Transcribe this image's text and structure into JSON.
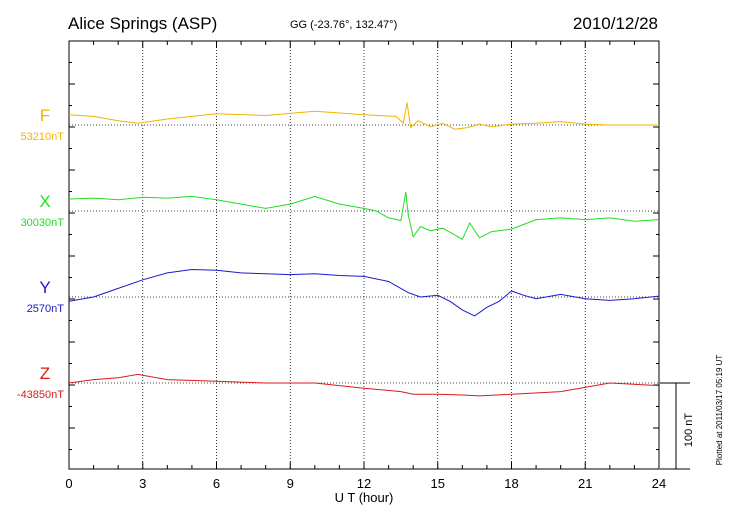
{
  "title": {
    "station": "Alice Springs (ASP)",
    "coords": "GG (-23.76°, 132.47°)",
    "date": "2010/12/28"
  },
  "plotted_note": "Plotted at 2011/03/17 05:19 UT",
  "scale_label": "100 nT",
  "colors": {
    "F": "#f0b400",
    "X": "#22dd22",
    "Y": "#1a1acc",
    "Z": "#dd1a1a",
    "axis": "#000000",
    "grid": "#000000"
  },
  "chart_data": {
    "type": "line",
    "xlabel": "U T (hour)",
    "xlim": [
      0,
      24
    ],
    "xticks": [
      "0",
      "3",
      "6",
      "9",
      "12",
      "15",
      "18",
      "21",
      "24"
    ],
    "grid": true,
    "scale_nT": 100,
    "series": [
      {
        "name": "F",
        "baseline_label": "53210nT",
        "x": [
          0,
          1,
          2,
          2.8,
          4,
          6,
          8,
          10,
          12,
          13.3,
          13.6,
          13.75,
          13.9,
          14.2,
          14.7,
          15.2,
          15.7,
          16.2,
          16.7,
          17.2,
          18,
          19,
          20,
          21,
          22,
          23,
          24
        ],
        "y": [
          12,
          10,
          5,
          2,
          7,
          13,
          11,
          16,
          12,
          10,
          2,
          26,
          -3,
          5,
          -2,
          2,
          -5,
          -3,
          1,
          -2,
          1,
          2,
          4,
          1,
          0,
          0,
          0
        ]
      },
      {
        "name": "X",
        "baseline_label": "30030nT",
        "x": [
          0,
          1,
          2,
          3,
          4,
          5,
          6,
          7,
          8,
          9,
          10,
          11,
          12,
          12.5,
          13,
          13.5,
          13.7,
          13.8,
          14,
          14.3,
          14.7,
          15.2,
          15.7,
          16,
          16.3,
          16.7,
          17.2,
          18,
          19,
          20,
          21,
          22,
          23,
          24
        ],
        "y": [
          14,
          15,
          13,
          16,
          15,
          17,
          13,
          8,
          3,
          8,
          17,
          8,
          3,
          0,
          -8,
          -11,
          22,
          -5,
          -30,
          -18,
          -23,
          -20,
          -28,
          -33,
          -14,
          -31,
          -24,
          -21,
          -10,
          -8,
          -10,
          -8,
          -12,
          -10
        ]
      },
      {
        "name": "Y",
        "baseline_label": "2570nT",
        "x": [
          0,
          1,
          2,
          3,
          4,
          5,
          6,
          7,
          8,
          9,
          10,
          11,
          12,
          13,
          13.8,
          14.3,
          15,
          15.5,
          16,
          16.5,
          17,
          17.5,
          18,
          18.5,
          19,
          20,
          21,
          22,
          23,
          24
        ],
        "y": [
          -5,
          0,
          10,
          20,
          28,
          32,
          31,
          28,
          27,
          26,
          27,
          25,
          24,
          18,
          5,
          0,
          2,
          -5,
          -15,
          -22,
          -12,
          -5,
          7,
          2,
          -2,
          3,
          -2,
          -4,
          -2,
          1
        ]
      },
      {
        "name": "Z",
        "baseline_label": "-43850nT",
        "x": [
          0,
          1,
          2,
          2.8,
          4,
          6,
          8,
          10,
          12,
          13.5,
          14,
          15,
          16,
          16.7,
          18,
          20,
          22,
          24
        ],
        "y": [
          0,
          4,
          6,
          10,
          4,
          2,
          0,
          0,
          -6,
          -10,
          -13,
          -13,
          -14,
          -15,
          -13,
          -10,
          0,
          -3
        ]
      }
    ]
  }
}
